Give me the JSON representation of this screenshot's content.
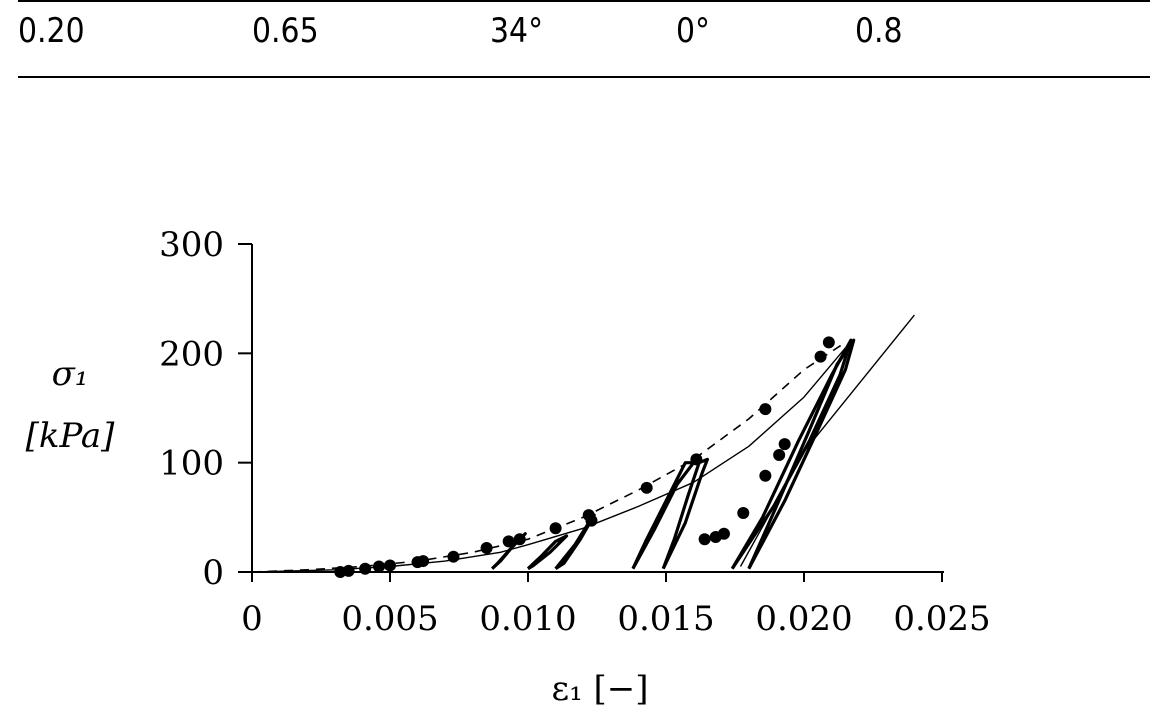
{
  "table_row": [
    "0.20",
    "0.65",
    "34°",
    "0°",
    "0.8"
  ],
  "chart_data": {
    "type": "line",
    "title": "",
    "xlabel": "ε₁ [−]",
    "ylabel_line1": "σ₁",
    "ylabel_line2": "[kPa]",
    "xlim": [
      0,
      0.025
    ],
    "ylim": [
      0,
      300
    ],
    "x_ticks": [
      {
        "value": 0,
        "label": "0"
      },
      {
        "value": 0.005,
        "label": "0.005"
      },
      {
        "value": 0.01,
        "label": "0.010"
      },
      {
        "value": 0.015,
        "label": "0.015"
      },
      {
        "value": 0.02,
        "label": "0.020"
      },
      {
        "value": 0.025,
        "label": "0.025"
      }
    ],
    "y_ticks": [
      {
        "value": 0,
        "label": "0"
      },
      {
        "value": 100,
        "label": "100"
      },
      {
        "value": 200,
        "label": "200"
      },
      {
        "value": 300,
        "label": "300"
      }
    ],
    "grid": false,
    "series": [
      {
        "style": "dashed",
        "points": [
          [
            0,
            0
          ],
          [
            0.002,
            2
          ],
          [
            0.004,
            5
          ],
          [
            0.006,
            10
          ],
          [
            0.008,
            18
          ],
          [
            0.01,
            30
          ],
          [
            0.012,
            50
          ],
          [
            0.014,
            75
          ],
          [
            0.016,
            103
          ],
          [
            0.018,
            140
          ],
          [
            0.02,
            185
          ],
          [
            0.0215,
            210
          ]
        ]
      },
      {
        "style": "solid-thin",
        "points": [
          [
            0,
            0
          ],
          [
            0.003,
            2
          ],
          [
            0.005,
            5
          ],
          [
            0.007,
            10
          ],
          [
            0.009,
            18
          ],
          [
            0.01,
            25
          ],
          [
            0.012,
            40
          ],
          [
            0.014,
            60
          ],
          [
            0.016,
            82
          ],
          [
            0.018,
            115
          ],
          [
            0.02,
            160
          ],
          [
            0.0215,
            205
          ]
        ]
      },
      {
        "style": "solid-thin",
        "points": [
          [
            0.0177,
            5
          ],
          [
            0.02,
            110
          ],
          [
            0.024,
            235
          ]
        ]
      },
      {
        "style": "solid-thick",
        "points": [
          [
            0.0087,
            3
          ],
          [
            0.009,
            10
          ],
          [
            0.0095,
            25
          ],
          [
            0.0099,
            35
          ],
          [
            0.0094,
            22
          ],
          [
            0.0089,
            8
          ],
          [
            0.0087,
            3
          ]
        ]
      },
      {
        "style": "solid-thick",
        "points": [
          [
            0.01,
            3
          ],
          [
            0.0105,
            15
          ],
          [
            0.011,
            28
          ],
          [
            0.0114,
            33
          ],
          [
            0.0108,
            18
          ],
          [
            0.0102,
            6
          ],
          [
            0.01,
            3
          ]
        ]
      },
      {
        "style": "solid-thick",
        "points": [
          [
            0.011,
            3
          ],
          [
            0.0117,
            25
          ],
          [
            0.0122,
            45
          ],
          [
            0.0124,
            52
          ],
          [
            0.0119,
            30
          ],
          [
            0.0113,
            8
          ],
          [
            0.011,
            3
          ]
        ]
      },
      {
        "style": "solid-thick",
        "points": [
          [
            0.0138,
            3
          ],
          [
            0.0146,
            40
          ],
          [
            0.0154,
            80
          ],
          [
            0.016,
            100
          ],
          [
            0.0157,
            100
          ],
          [
            0.0151,
            70
          ],
          [
            0.0143,
            30
          ],
          [
            0.0138,
            3
          ]
        ]
      },
      {
        "style": "solid-thick",
        "points": [
          [
            0.0149,
            3
          ],
          [
            0.0157,
            45
          ],
          [
            0.0163,
            90
          ],
          [
            0.0165,
            103
          ],
          [
            0.0162,
            100
          ],
          [
            0.0158,
            70
          ],
          [
            0.0153,
            30
          ],
          [
            0.0149,
            3
          ]
        ]
      },
      {
        "style": "solid-thick",
        "points": [
          [
            0.0174,
            3
          ],
          [
            0.0185,
            50
          ],
          [
            0.0198,
            120
          ],
          [
            0.021,
            180
          ],
          [
            0.0217,
            212
          ],
          [
            0.0213,
            180
          ],
          [
            0.0202,
            120
          ],
          [
            0.0189,
            60
          ],
          [
            0.0174,
            3
          ]
        ]
      },
      {
        "style": "solid-thick",
        "points": [
          [
            0.018,
            3
          ],
          [
            0.019,
            60
          ],
          [
            0.0202,
            130
          ],
          [
            0.0212,
            190
          ],
          [
            0.0218,
            212
          ],
          [
            0.0215,
            185
          ],
          [
            0.0205,
            130
          ],
          [
            0.0193,
            65
          ],
          [
            0.018,
            3
          ]
        ]
      }
    ],
    "markers": [
      [
        0.0032,
        0
      ],
      [
        0.0035,
        1
      ],
      [
        0.0041,
        3
      ],
      [
        0.0046,
        5
      ],
      [
        0.005,
        6
      ],
      [
        0.006,
        9
      ],
      [
        0.0062,
        10
      ],
      [
        0.0073,
        14
      ],
      [
        0.0085,
        22
      ],
      [
        0.0093,
        28
      ],
      [
        0.0097,
        30
      ],
      [
        0.011,
        40
      ],
      [
        0.0122,
        52
      ],
      [
        0.0123,
        47
      ],
      [
        0.0143,
        77
      ],
      [
        0.0161,
        103
      ],
      [
        0.0164,
        30
      ],
      [
        0.0168,
        32
      ],
      [
        0.0171,
        35
      ],
      [
        0.0178,
        54
      ],
      [
        0.0186,
        88
      ],
      [
        0.0186,
        149
      ],
      [
        0.0191,
        107
      ],
      [
        0.0193,
        117
      ],
      [
        0.0206,
        197
      ],
      [
        0.0209,
        210
      ]
    ]
  }
}
